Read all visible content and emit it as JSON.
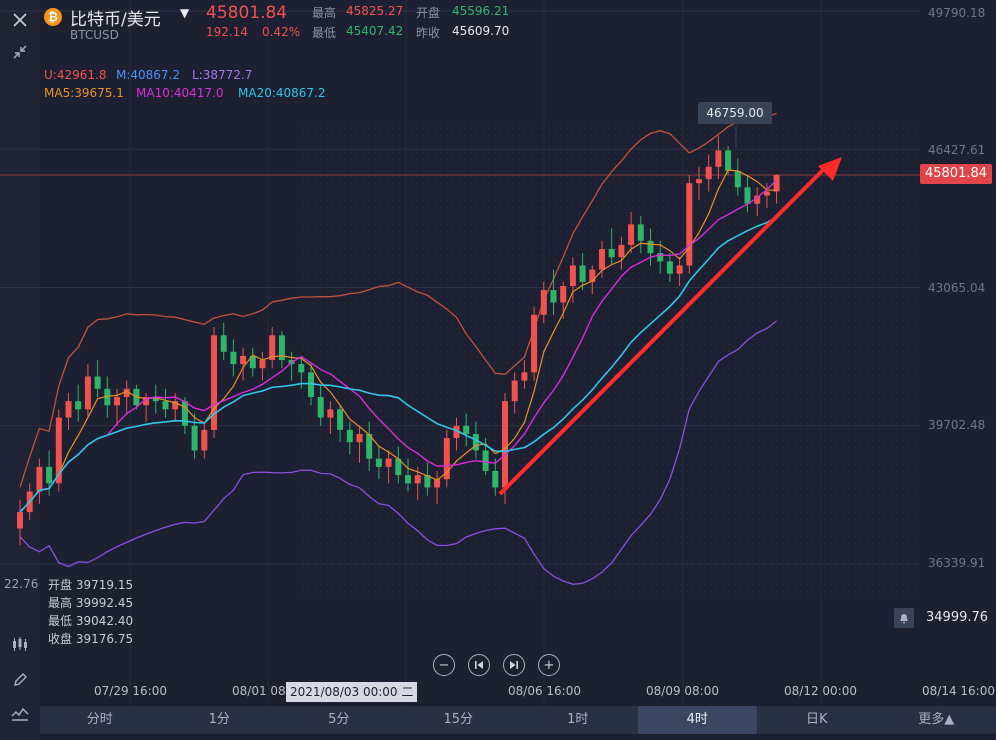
{
  "header": {
    "symbol_name": "比特币/美元",
    "symbol_code": "BTCUSD",
    "last_price": "45801.84",
    "change_abs": "192.14",
    "change_pct": "0.42%",
    "high_label": "最高",
    "high_value": "45825.27",
    "low_label": "最低",
    "low_value": "45407.42",
    "open_label": "开盘",
    "open_value": "45596.21",
    "prev_close_label": "昨收",
    "prev_close_value": "45609.70"
  },
  "indicators": {
    "boll_u": "U:42961.8",
    "boll_m": "M:40867.2",
    "boll_l": "L:38772.7",
    "ma5": "MA5:39675.1",
    "ma10": "MA10:40417.0",
    "ma20": "MA20:40867.2"
  },
  "price_tag": "45801.84",
  "high_tooltip": "46759.00",
  "alert_price": "34999.76",
  "partial_price_label": "22.76",
  "y_axis_labels": [
    "49790.18",
    "46427.61",
    "43065.04",
    "39702.48",
    "36339.91"
  ],
  "x_axis_labels": [
    "07/29 16:00",
    "08/01 08:00",
    "08/06 16:00",
    "08/09 08:00",
    "08/12 00:00",
    "08/14 16:00"
  ],
  "crosshair_time": "2021/08/03 00:00 二",
  "ohlc": {
    "open_label": "开盘",
    "open_value": "39719.15",
    "high_label": "最高",
    "high_value": "39992.45",
    "low_label": "最低",
    "low_value": "39042.40",
    "close_label": "收盘",
    "close_value": "39176.75"
  },
  "tabs": [
    "分时",
    "1分",
    "5分",
    "15分",
    "1时",
    "4时",
    "日K",
    "更多▲"
  ],
  "active_tab": "4时",
  "colors": {
    "up": "#ef5350",
    "down": "#2fb56a",
    "boll": "#c0533e",
    "boll_lower": "#8a4fe0",
    "ma5": "#e8902a",
    "ma10": "#d62fd6",
    "ma20": "#33c4e8",
    "arrow": "#ff2a2a"
  },
  "icons": [
    "close-icon",
    "collapse-icon",
    "candle-type-icon",
    "draw-pen-icon",
    "indicator-icon",
    "zoom-out-icon",
    "prev-icon",
    "next-icon",
    "zoom-in-icon",
    "bell-icon",
    "bitcoin-icon",
    "dropdown-caret-icon"
  ],
  "chart_data": {
    "type": "candlestick",
    "title": "BTCUSD",
    "y_range": [
      34999.76,
      49790.18
    ],
    "y_ticks": [
      49790.18,
      46427.61,
      43065.04,
      39702.48,
      36339.91
    ],
    "candles": [
      [
        37200,
        37900,
        36800,
        37600
      ],
      [
        37600,
        38300,
        37400,
        38100
      ],
      [
        38100,
        38900,
        37800,
        38700
      ],
      [
        38700,
        39100,
        38000,
        38300
      ],
      [
        38300,
        40100,
        38100,
        39900
      ],
      [
        39900,
        40500,
        39600,
        40300
      ],
      [
        40300,
        40700,
        39800,
        40100
      ],
      [
        40100,
        41200,
        39900,
        40900
      ],
      [
        40900,
        41300,
        40400,
        40600
      ],
      [
        40600,
        40900,
        39900,
        40200
      ],
      [
        40200,
        40600,
        39700,
        40400
      ],
      [
        40400,
        40800,
        40000,
        40600
      ],
      [
        40600,
        40700,
        40100,
        40200
      ],
      [
        40200,
        40500,
        39800,
        40400
      ],
      [
        40400,
        40700,
        40000,
        40300
      ],
      [
        40300,
        40600,
        39900,
        40100
      ],
      [
        40100,
        40500,
        39800,
        40300
      ],
      [
        40300,
        40400,
        39500,
        39700
      ],
      [
        39700,
        40000,
        38900,
        39100
      ],
      [
        39100,
        39800,
        38900,
        39600
      ],
      [
        39600,
        42100,
        39400,
        41900
      ],
      [
        41900,
        42200,
        41300,
        41500
      ],
      [
        41500,
        41800,
        40900,
        41200
      ],
      [
        41200,
        41600,
        40800,
        41400
      ],
      [
        41400,
        41600,
        40900,
        41100
      ],
      [
        41100,
        41500,
        40800,
        41300
      ],
      [
        41300,
        42100,
        41100,
        41900
      ],
      [
        41900,
        42000,
        41100,
        41300
      ],
      [
        41300,
        41500,
        40800,
        41200
      ],
      [
        41200,
        41400,
        40600,
        41000
      ],
      [
        41000,
        41200,
        40200,
        40400
      ],
      [
        40400,
        40700,
        39700,
        39900
      ],
      [
        39900,
        40300,
        39500,
        40100
      ],
      [
        40100,
        40200,
        39300,
        39600
      ],
      [
        39600,
        39800,
        39000,
        39300
      ],
      [
        39300,
        39700,
        38800,
        39500
      ],
      [
        39500,
        39800,
        38600,
        38900
      ],
      [
        38900,
        39200,
        38400,
        38700
      ],
      [
        38700,
        39100,
        38300,
        38900
      ],
      [
        38900,
        39200,
        38300,
        38500
      ],
      [
        38500,
        38900,
        38100,
        38300
      ],
      [
        38300,
        38700,
        37900,
        38500
      ],
      [
        38500,
        38800,
        38000,
        38200
      ],
      [
        38200,
        38600,
        37800,
        38400
      ],
      [
        38400,
        39600,
        38200,
        39400
      ],
      [
        39400,
        39900,
        39100,
        39700
      ],
      [
        39700,
        40000,
        39200,
        39500
      ],
      [
        39500,
        39800,
        38900,
        39100
      ],
      [
        39100,
        39400,
        38500,
        38600
      ],
      [
        38600,
        38900,
        38000,
        38200
      ],
      [
        38200,
        40500,
        37800,
        40300
      ],
      [
        40300,
        41000,
        40000,
        40800
      ],
      [
        40800,
        41300,
        40600,
        41000
      ],
      [
        41000,
        42600,
        40800,
        42400
      ],
      [
        42400,
        43200,
        42200,
        43000
      ],
      [
        43000,
        43500,
        42400,
        42700
      ],
      [
        42700,
        43200,
        42300,
        43100
      ],
      [
        43100,
        43800,
        42700,
        43600
      ],
      [
        43600,
        43900,
        43000,
        43200
      ],
      [
        43200,
        43600,
        42900,
        43500
      ],
      [
        43500,
        44200,
        43300,
        44000
      ],
      [
        44000,
        44500,
        43600,
        43800
      ],
      [
        43800,
        44300,
        43500,
        44100
      ],
      [
        44100,
        44900,
        43900,
        44600
      ],
      [
        44600,
        44800,
        43900,
        44200
      ],
      [
        44200,
        44500,
        43600,
        43900
      ],
      [
        43900,
        44200,
        43400,
        43700
      ],
      [
        43700,
        43900,
        43200,
        43400
      ],
      [
        43400,
        43800,
        43100,
        43600
      ],
      [
        43600,
        45800,
        43400,
        45600
      ],
      [
        45600,
        46000,
        45200,
        45700
      ],
      [
        45700,
        46300,
        45400,
        46000
      ],
      [
        46000,
        46759,
        45700,
        46400
      ],
      [
        46400,
        46500,
        45800,
        45900
      ],
      [
        45900,
        46200,
        45300,
        45500
      ],
      [
        45500,
        45800,
        44900,
        45100
      ],
      [
        45100,
        45500,
        44800,
        45300
      ],
      [
        45300,
        45600,
        45000,
        45400
      ],
      [
        45400,
        45826,
        45100,
        45801.84
      ]
    ]
  }
}
